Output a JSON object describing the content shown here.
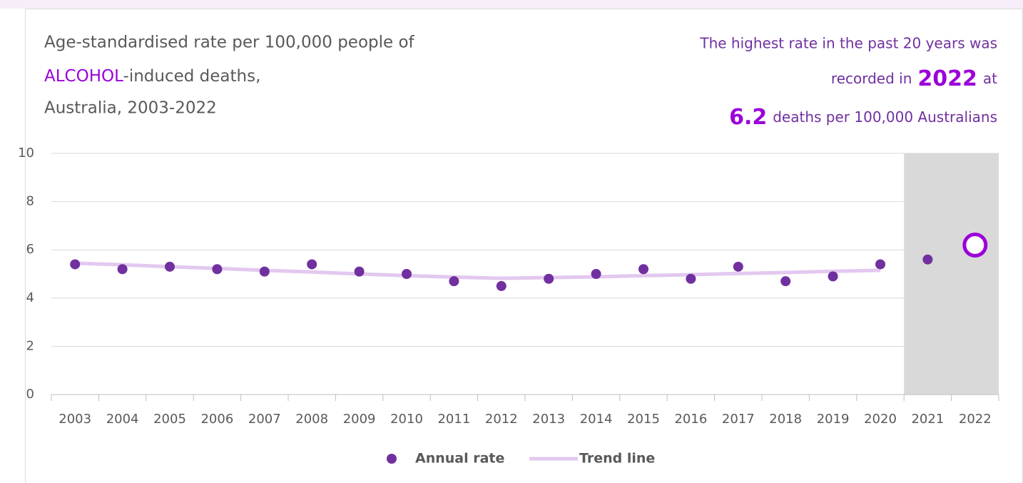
{
  "chart_data": {
    "type": "scatter-trend",
    "title": {
      "line1": "Age-standardised rate per 100,000 people of",
      "highlight": "ALCOHOL",
      "line2": "-induced deaths,",
      "line3": "Australia, 2003-2022"
    },
    "annotation": {
      "line1": "The highest rate in the past 20 years was",
      "line2_start": "recorded in",
      "line2_end": "at",
      "line3_end": "deaths per 100,000 Australians"
    },
    "categories": [
      "2003",
      "2004",
      "2005",
      "2006",
      "2007",
      "2008",
      "2009",
      "2010",
      "2011",
      "2012",
      "2013",
      "2014",
      "2015",
      "2016",
      "2017",
      "2018",
      "2019",
      "2020",
      "2021",
      "2022"
    ],
    "series": [
      {
        "name": "Annual rate",
        "color": "#7030a0",
        "style": "points",
        "values": [
          5.4,
          5.2,
          5.3,
          5.2,
          5.1,
          5.4,
          5.1,
          5.0,
          4.7,
          4.5,
          4.8,
          5.0,
          5.2,
          4.8,
          5.3,
          4.7,
          4.9,
          5.4,
          5.6,
          6.2
        ]
      },
      {
        "name": "Trend line",
        "color": "#e3c8ef",
        "style": "line",
        "values": [
          5.45,
          5.38,
          5.3,
          5.23,
          5.15,
          5.08,
          5.0,
          4.93,
          4.87,
          4.82,
          4.85,
          4.88,
          4.93,
          4.97,
          5.02,
          5.06,
          5.11,
          5.15,
          null,
          null
        ]
      }
    ],
    "highlight_color": "#9b00d9",
    "shade": {
      "from": "2021",
      "to": "2022",
      "color": "#d9d9d9"
    },
    "ylim": [
      0,
      10
    ],
    "yticks": [
      0,
      2,
      4,
      6,
      8,
      10
    ],
    "grid": true,
    "legend": "bottom"
  }
}
